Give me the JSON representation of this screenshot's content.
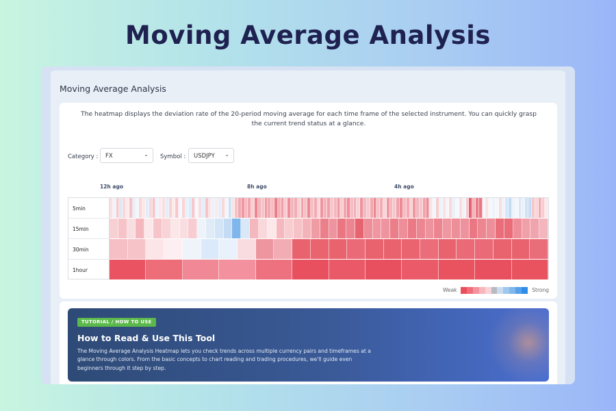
{
  "hero_title": "Moving Average Analysis",
  "panel": {
    "title": "Moving Average Analysis",
    "description": "The heatmap displays the deviation rate of the 20-period moving average for each time frame of the selected instrument. You can quickly grasp the current trend status at a glance."
  },
  "filters": {
    "category_label": "Category :",
    "category_value": "FX",
    "symbol_label": "Symbol :",
    "symbol_value": "USDJPY",
    "chevron": "⌄"
  },
  "heatmap": {
    "time_labels": [
      "12h ago",
      "8h ago",
      "4h ago"
    ],
    "rows": [
      {
        "label": "5min",
        "colors": [
          "#f8e0e3",
          "#eef3fa",
          "#f6c8cd",
          "#dbe9f5",
          "#f8d7da",
          "#fbeaec",
          "#f5c3c8",
          "#e7f0f8",
          "#f2f6fb",
          "#f8d7da",
          "#fce8ea",
          "#dfeefa",
          "#f8d7da",
          "#f6c2c8",
          "#eef3fa",
          "#fbeaec",
          "#f9dfe2",
          "#e4eef7",
          "#f7d2d5",
          "#fde9eb",
          "#f6c8cd",
          "#f3f6fa",
          "#f8d5d8",
          "#e8f1f9",
          "#dbeafa",
          "#f7c9ce",
          "#f4f7fb",
          "#f8dcdf",
          "#e2eef8",
          "#f6c4c9",
          "#f9e5e8",
          "#eaf2fa",
          "#fbeaec",
          "#e3eef9",
          "#f8d8db",
          "#f2f6fb",
          "#c8dff5",
          "#f9e3e6",
          "#f3c2c7",
          "#f0a9b1",
          "#ee97a0",
          "#f4b9bf",
          "#f1a5ad",
          "#f7cfd3",
          "#ec8590",
          "#f3b4bb",
          "#f6c3c8",
          "#ef9ba4",
          "#f2aab1",
          "#f5bcc2",
          "#eb7e89",
          "#f3b1b8",
          "#ef9ea7",
          "#f7cbd0",
          "#ed8d97",
          "#f4b6bd",
          "#f2acb3",
          "#f7d0d4",
          "#f1a3ab",
          "#f6c0c6",
          "#ec8892",
          "#f5bfc4",
          "#f2aab2",
          "#f8d4d8",
          "#ee95a0",
          "#f3b3ba",
          "#f0a0a9",
          "#f6c7cc",
          "#f4b8be",
          "#ef99a2",
          "#f7cdd1",
          "#f1a6ae",
          "#ed8e99",
          "#f5bec4",
          "#f3b0b7",
          "#f8d2d6",
          "#ee939d",
          "#f4b9bf",
          "#f7c9ce",
          "#f1a7af",
          "#ec8691",
          "#f5c1c6",
          "#f2adb4",
          "#f8d6d9",
          "#ef9aa3",
          "#f4b5bc",
          "#f7c6cb",
          "#f0a1aa",
          "#ec8b95",
          "#f5bdc3",
          "#f2a9b1",
          "#f8d3d7",
          "#ee979f",
          "#f3b6bd",
          "#f6c4c9",
          "#f1a4ac",
          "#ec8893",
          "#f8e1e4",
          "#f3f7fb",
          "#f7cdd1",
          "#ecf3fa",
          "#f9e2e5",
          "#f2f6fb",
          "#f8d8db",
          "#e9f1f9",
          "#f4f7fb",
          "#f9dee1",
          "#eef4fa",
          "#f6c9ce",
          "#e56371",
          "#f3b4bb",
          "#eb7c87",
          "#ea7683",
          "#f2f6fb",
          "#f9e3e6",
          "#f4f7fb",
          "#eef3fa",
          "#f3f6fa",
          "#f8dde0",
          "#eef3fa",
          "#d6e7f7",
          "#c4dcf3",
          "#eef3fa",
          "#f3f6fa",
          "#d9e8f6",
          "#ecf2f9",
          "#cfe3f5",
          "#c7ddf3",
          "#f6c8cd",
          "#f8d7da",
          "#f2aab2",
          "#f7cfd3",
          "#fbe8ea"
        ]
      },
      {
        "label": "15min",
        "colors": [
          "#f7d0d4",
          "#f6c3c8",
          "#f9dee1",
          "#f3b7bd",
          "#fce8ea",
          "#f6c5ca",
          "#f8d3d7",
          "#fbe6e8",
          "#f9dde0",
          "#f7cdd1",
          "#eef3fa",
          "#dfebf7",
          "#d3e5f6",
          "#c4dcf3",
          "#7fb6ec",
          "#d9e8f6",
          "#f3b7bd",
          "#f8d8db",
          "#fce8ea",
          "#f4b8be",
          "#f7cdd1",
          "#f6c2c7",
          "#f4b3ba",
          "#ef9ca5",
          "#eb7f8a",
          "#ee94a0",
          "#ea7682",
          "#ec8590",
          "#e6646f",
          "#ed8f99",
          "#ef96a0",
          "#ee949e",
          "#eb7e89",
          "#ed8e98",
          "#ea7a85",
          "#ec8792",
          "#ee939e",
          "#ec8590",
          "#ef98a1",
          "#ed8f99",
          "#ee939d",
          "#ea7783",
          "#ec8690",
          "#ed8f99",
          "#e96e7a",
          "#e96c78",
          "#ed8e98",
          "#f0a0a9",
          "#f0a4ad",
          "#f3b6bd"
        ]
      },
      {
        "label": "30min",
        "colors": [
          "#f5bfc5",
          "#f6c3c8",
          "#fbe5e7",
          "#fdeff1",
          "#eef4fa",
          "#dbeafa",
          "#e9f2fb",
          "#f9dce0",
          "#ee96a0",
          "#f2acb3",
          "#e9636f",
          "#e9646f",
          "#e9636f",
          "#ea6b77",
          "#e9636f",
          "#e9636f",
          "#e9646f",
          "#ea6d79",
          "#e9636f",
          "#ea6b77",
          "#ea6b77",
          "#e9636f",
          "#e9636f",
          "#ea6e7a"
        ]
      },
      {
        "label": "1hour",
        "colors": [
          "#ea5361",
          "#ed6d79",
          "#f18896",
          "#f3929e",
          "#ee7180",
          "#e8505f",
          "#ea5967",
          "#e8505f",
          "#ea5a68",
          "#e9535f",
          "#e8505f",
          "#e9535f"
        ]
      }
    ]
  },
  "legend": {
    "weak_label": "Weak",
    "strong_label": "Strong",
    "colors": [
      "#ea4e5c",
      "#ee6f7b",
      "#f3949d",
      "#f7b7bd",
      "#f9d4d7",
      "#b9b9c1",
      "#c9dcee",
      "#9fc8ef",
      "#7fb6ec",
      "#55a1ea",
      "#2f8ce9"
    ]
  },
  "tutorial": {
    "badge": "TUTORIAL / HOW TO USE",
    "title": "How to Read & Use This Tool",
    "body": "The Moving Average Analysis Heatmap lets you check trends across multiple currency pairs and timeframes at a glance through colors. From the basic concepts to chart reading and trading procedures, we'll guide even beginners through it step by step."
  }
}
